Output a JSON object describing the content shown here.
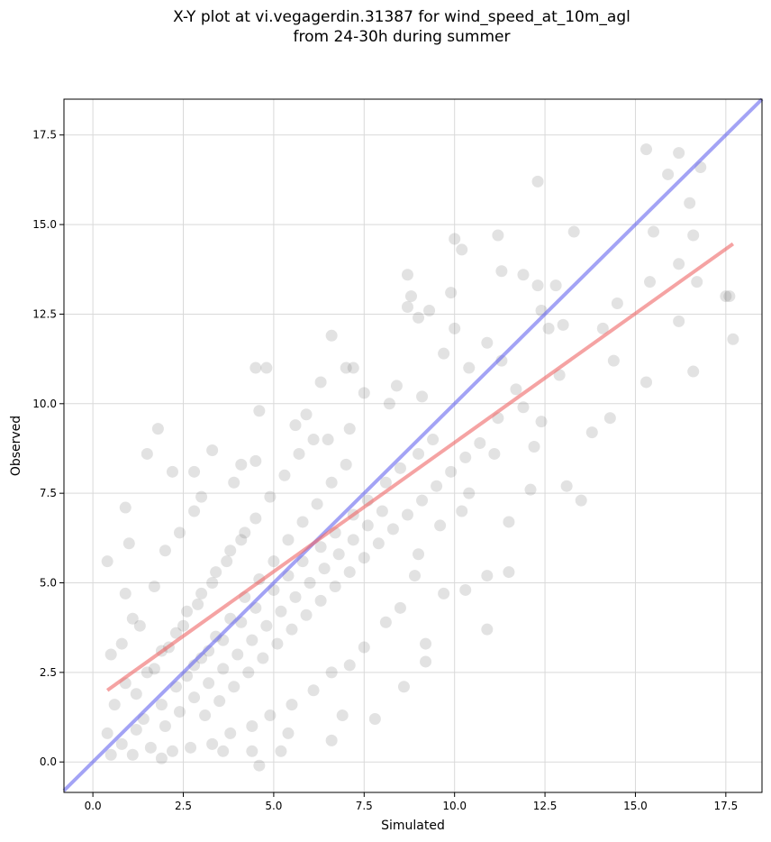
{
  "chart_data": {
    "type": "scatter",
    "title": "X-Y plot at vi.vegagerdin.31387 for wind_speed_at_10m_agl",
    "subtitle": "from 24-30h during summer",
    "xlabel": "Simulated",
    "ylabel": "Observed",
    "xlim": [
      -0.8,
      18.5
    ],
    "ylim": [
      -0.85,
      18.5
    ],
    "xticks": [
      "0.0",
      "2.5",
      "5.0",
      "7.5",
      "10.0",
      "12.5",
      "15.0",
      "17.5"
    ],
    "yticks": [
      "0.0",
      "2.5",
      "5.0",
      "7.5",
      "10.0",
      "12.5",
      "15.0",
      "17.5"
    ],
    "grid": true,
    "point_color": "#555555",
    "points": [
      [
        0.4,
        5.6
      ],
      [
        0.9,
        7.1
      ],
      [
        1.0,
        6.1
      ],
      [
        1.5,
        8.6
      ],
      [
        1.8,
        9.3
      ],
      [
        2.2,
        8.1
      ],
      [
        2.8,
        8.1
      ],
      [
        3.3,
        8.7
      ],
      [
        4.5,
        11.0
      ],
      [
        4.8,
        11.0
      ],
      [
        4.6,
        9.8
      ],
      [
        6.6,
        11.9
      ],
      [
        7.0,
        11.0
      ],
      [
        7.2,
        11.0
      ],
      [
        6.3,
        10.6
      ],
      [
        8.7,
        13.6
      ],
      [
        8.8,
        13.0
      ],
      [
        8.7,
        12.7
      ],
      [
        9.0,
        12.4
      ],
      [
        9.3,
        12.6
      ],
      [
        9.9,
        13.1
      ],
      [
        10.0,
        14.6
      ],
      [
        10.2,
        14.3
      ],
      [
        11.3,
        13.7
      ],
      [
        11.2,
        14.7
      ],
      [
        11.9,
        13.6
      ],
      [
        12.3,
        16.2
      ],
      [
        12.3,
        13.3
      ],
      [
        12.8,
        13.3
      ],
      [
        13.3,
        14.8
      ],
      [
        12.4,
        12.6
      ],
      [
        12.6,
        12.1
      ],
      [
        13.0,
        12.2
      ],
      [
        14.1,
        12.1
      ],
      [
        14.5,
        12.8
      ],
      [
        15.3,
        17.1
      ],
      [
        15.4,
        13.4
      ],
      [
        15.5,
        14.8
      ],
      [
        15.9,
        16.4
      ],
      [
        16.2,
        17.0
      ],
      [
        16.8,
        16.6
      ],
      [
        16.5,
        15.6
      ],
      [
        16.6,
        14.7
      ],
      [
        16.2,
        13.9
      ],
      [
        16.7,
        13.4
      ],
      [
        17.5,
        13.0
      ],
      [
        17.6,
        13.0
      ],
      [
        17.7,
        11.8
      ],
      [
        16.6,
        10.9
      ],
      [
        16.2,
        12.3
      ],
      [
        15.3,
        10.6
      ],
      [
        14.4,
        11.2
      ],
      [
        14.3,
        9.6
      ],
      [
        13.8,
        9.2
      ],
      [
        13.1,
        7.7
      ],
      [
        13.5,
        7.3
      ],
      [
        12.1,
        7.6
      ],
      [
        11.5,
        6.7
      ],
      [
        11.5,
        5.3
      ],
      [
        10.9,
        5.2
      ],
      [
        10.9,
        3.7
      ],
      [
        10.3,
        4.8
      ],
      [
        9.7,
        4.7
      ],
      [
        9.2,
        3.3
      ],
      [
        9.2,
        2.8
      ],
      [
        8.6,
        2.1
      ],
      [
        7.8,
        1.2
      ],
      [
        6.9,
        1.3
      ],
      [
        6.6,
        0.6
      ],
      [
        5.4,
        0.8
      ],
      [
        5.2,
        0.3
      ],
      [
        4.4,
        0.3
      ],
      [
        4.6,
        -0.1
      ],
      [
        3.6,
        0.3
      ],
      [
        1.9,
        0.1
      ],
      [
        0.5,
        0.2
      ],
      [
        0.4,
        0.8
      ],
      [
        0.8,
        0.5
      ],
      [
        1.2,
        0.9
      ],
      [
        0.6,
        1.6
      ],
      [
        0.9,
        2.2
      ],
      [
        0.5,
        3.0
      ],
      [
        0.8,
        3.3
      ],
      [
        1.1,
        4.0
      ],
      [
        0.9,
        4.7
      ],
      [
        1.3,
        3.8
      ],
      [
        1.7,
        4.9
      ],
      [
        2.0,
        5.9
      ],
      [
        2.4,
        6.4
      ],
      [
        2.8,
        7.0
      ],
      [
        3.0,
        7.4
      ],
      [
        3.9,
        7.8
      ],
      [
        4.1,
        8.3
      ],
      [
        4.5,
        8.4
      ],
      [
        5.6,
        9.4
      ],
      [
        5.9,
        9.7
      ],
      [
        6.5,
        9.0
      ],
      [
        7.1,
        9.3
      ],
      [
        7.5,
        10.3
      ],
      [
        8.2,
        10.0
      ],
      [
        8.4,
        10.5
      ],
      [
        9.1,
        10.2
      ],
      [
        9.7,
        11.4
      ],
      [
        10.0,
        12.1
      ],
      [
        10.4,
        11.0
      ],
      [
        10.9,
        11.7
      ],
      [
        11.3,
        11.2
      ],
      [
        11.7,
        10.4
      ],
      [
        11.2,
        9.6
      ],
      [
        11.9,
        9.9
      ],
      [
        12.4,
        9.5
      ],
      [
        12.9,
        10.8
      ],
      [
        12.2,
        8.8
      ],
      [
        11.1,
        8.6
      ],
      [
        10.4,
        7.5
      ],
      [
        10.2,
        7.0
      ],
      [
        9.6,
        6.6
      ],
      [
        9.0,
        5.8
      ],
      [
        8.9,
        5.2
      ],
      [
        8.5,
        4.3
      ],
      [
        8.1,
        3.9
      ],
      [
        7.5,
        3.2
      ],
      [
        7.1,
        2.7
      ],
      [
        6.6,
        2.5
      ],
      [
        6.1,
        2.0
      ],
      [
        5.5,
        1.6
      ],
      [
        4.9,
        1.3
      ],
      [
        4.4,
        1.0
      ],
      [
        3.8,
        0.8
      ],
      [
        3.3,
        0.5
      ],
      [
        2.7,
        0.4
      ],
      [
        2.2,
        0.3
      ],
      [
        1.6,
        0.4
      ],
      [
        1.1,
        0.2
      ],
      [
        1.4,
        1.2
      ],
      [
        1.9,
        1.6
      ],
      [
        2.3,
        2.1
      ],
      [
        2.8,
        2.7
      ],
      [
        3.2,
        3.1
      ],
      [
        3.6,
        3.4
      ],
      [
        4.1,
        3.9
      ],
      [
        4.5,
        4.3
      ],
      [
        5.0,
        4.8
      ],
      [
        5.4,
        5.2
      ],
      [
        5.8,
        5.6
      ],
      [
        6.3,
        6.0
      ],
      [
        6.7,
        6.4
      ],
      [
        7.2,
        6.9
      ],
      [
        7.6,
        7.3
      ],
      [
        8.1,
        7.8
      ],
      [
        8.5,
        8.2
      ],
      [
        9.0,
        8.6
      ],
      [
        9.4,
        9.0
      ],
      [
        1.7,
        2.6
      ],
      [
        2.1,
        3.2
      ],
      [
        2.5,
        3.8
      ],
      [
        2.9,
        4.4
      ],
      [
        3.3,
        5.0
      ],
      [
        3.7,
        5.6
      ],
      [
        4.1,
        6.2
      ],
      [
        4.5,
        6.8
      ],
      [
        4.9,
        7.4
      ],
      [
        5.3,
        8.0
      ],
      [
        5.7,
        8.6
      ],
      [
        6.1,
        9.0
      ],
      [
        1.2,
        1.9
      ],
      [
        1.5,
        2.5
      ],
      [
        1.9,
        3.1
      ],
      [
        2.3,
        3.6
      ],
      [
        2.6,
        4.2
      ],
      [
        3.0,
        4.7
      ],
      [
        3.4,
        5.3
      ],
      [
        3.8,
        5.9
      ],
      [
        4.2,
        6.4
      ],
      [
        2.0,
        1.0
      ],
      [
        2.4,
        1.4
      ],
      [
        2.8,
        1.8
      ],
      [
        3.2,
        2.2
      ],
      [
        3.6,
        2.6
      ],
      [
        4.0,
        3.0
      ],
      [
        4.4,
        3.4
      ],
      [
        4.8,
        3.8
      ],
      [
        5.2,
        4.2
      ],
      [
        5.6,
        4.6
      ],
      [
        6.0,
        5.0
      ],
      [
        6.4,
        5.4
      ],
      [
        6.8,
        5.8
      ],
      [
        7.2,
        6.2
      ],
      [
        7.6,
        6.6
      ],
      [
        8.0,
        7.0
      ],
      [
        2.6,
        2.4
      ],
      [
        3.0,
        2.9
      ],
      [
        3.4,
        3.5
      ],
      [
        3.8,
        4.0
      ],
      [
        4.2,
        4.6
      ],
      [
        4.6,
        5.1
      ],
      [
        5.0,
        5.6
      ],
      [
        5.4,
        6.2
      ],
      [
        5.8,
        6.7
      ],
      [
        6.2,
        7.2
      ],
      [
        6.6,
        7.8
      ],
      [
        7.0,
        8.3
      ],
      [
        3.1,
        1.3
      ],
      [
        3.5,
        1.7
      ],
      [
        3.9,
        2.1
      ],
      [
        4.3,
        2.5
      ],
      [
        4.7,
        2.9
      ],
      [
        5.1,
        3.3
      ],
      [
        5.5,
        3.7
      ],
      [
        5.9,
        4.1
      ],
      [
        6.3,
        4.5
      ],
      [
        6.7,
        4.9
      ],
      [
        7.1,
        5.3
      ],
      [
        7.5,
        5.7
      ],
      [
        7.9,
        6.1
      ],
      [
        8.3,
        6.5
      ],
      [
        8.7,
        6.9
      ],
      [
        9.1,
        7.3
      ],
      [
        9.5,
        7.7
      ],
      [
        9.9,
        8.1
      ],
      [
        10.3,
        8.5
      ],
      [
        10.7,
        8.9
      ]
    ]
  }
}
